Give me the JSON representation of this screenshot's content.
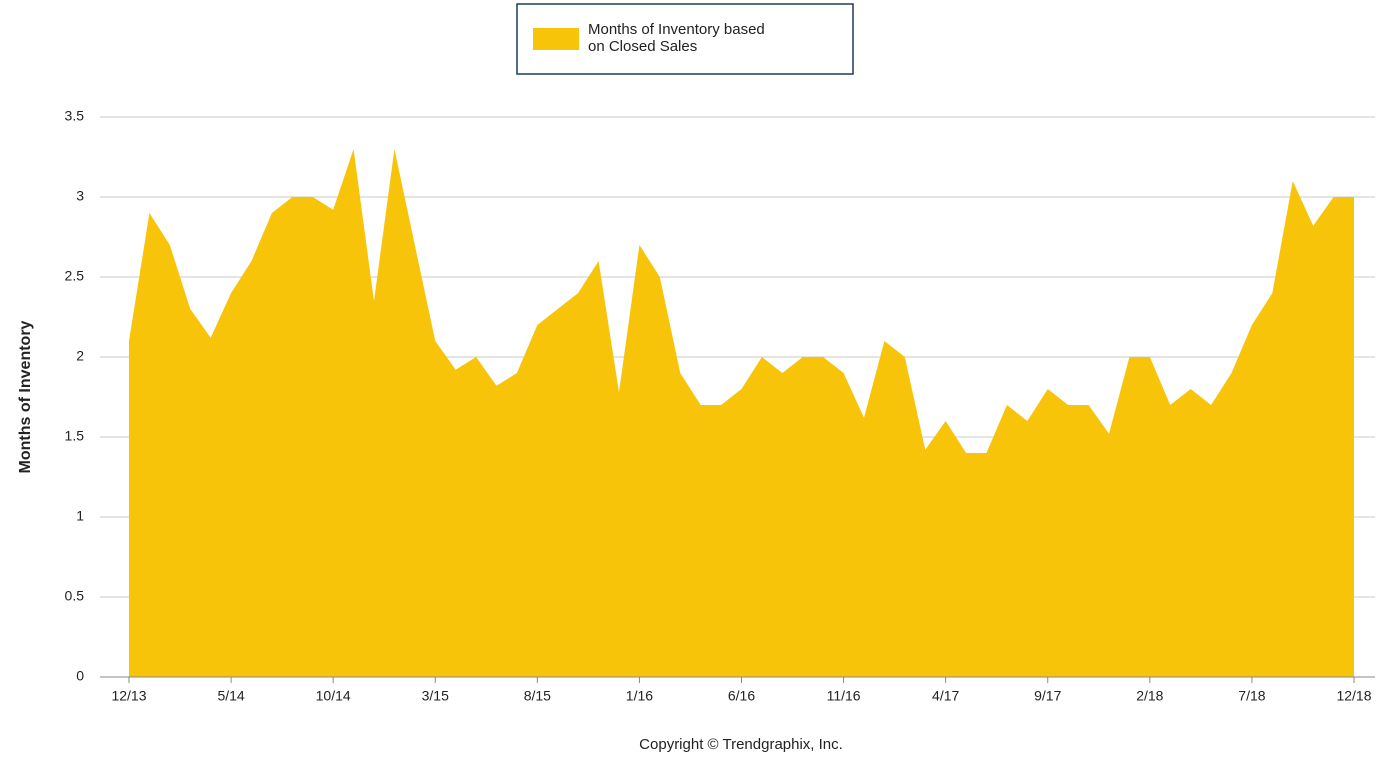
{
  "chart_data": {
    "type": "area",
    "legend_label": "Months of Inventory based on Closed Sales",
    "ylabel": "Months of Inventory",
    "footer": "Copyright © Trendgraphix, Inc.",
    "categories": [
      "12/13",
      null,
      null,
      null,
      null,
      "5/14",
      null,
      null,
      null,
      null,
      "10/14",
      null,
      null,
      null,
      null,
      "3/15",
      null,
      null,
      null,
      null,
      "8/15",
      null,
      null,
      null,
      null,
      "1/16",
      null,
      null,
      null,
      null,
      "6/16",
      null,
      null,
      null,
      null,
      "11/16",
      null,
      null,
      null,
      null,
      "4/17",
      null,
      null,
      null,
      null,
      "9/17",
      null,
      null,
      null,
      null,
      "2/18",
      null,
      null,
      null,
      null,
      "7/18",
      null,
      null,
      null,
      null,
      "12/18"
    ],
    "series": [
      {
        "name": "Months of Inventory based on Closed Sales",
        "color": "#f7c40a",
        "values": [
          2.1,
          2.9,
          2.7,
          2.3,
          2.12,
          2.4,
          2.6,
          2.9,
          3.0,
          3.0,
          2.92,
          3.3,
          2.35,
          3.3,
          2.7,
          2.1,
          1.92,
          2.0,
          1.82,
          1.9,
          2.2,
          2.3,
          2.4,
          2.6,
          1.78,
          2.7,
          2.5,
          1.9,
          1.7,
          1.7,
          1.8,
          2.0,
          1.9,
          2.0,
          2.0,
          1.9,
          1.62,
          2.1,
          2.0,
          1.42,
          1.6,
          1.4,
          1.4,
          1.7,
          1.6,
          1.8,
          1.7,
          1.7,
          1.52,
          2.0,
          2.0,
          1.7,
          1.8,
          1.7,
          1.9,
          2.2,
          2.4,
          3.1,
          2.82,
          3.0,
          3.0
        ]
      }
    ],
    "ylim": [
      0,
      3.5
    ],
    "yticks": [
      0,
      0.5,
      1,
      1.5,
      2,
      2.5,
      3,
      3.5
    ],
    "grid": true,
    "legend": "top"
  }
}
